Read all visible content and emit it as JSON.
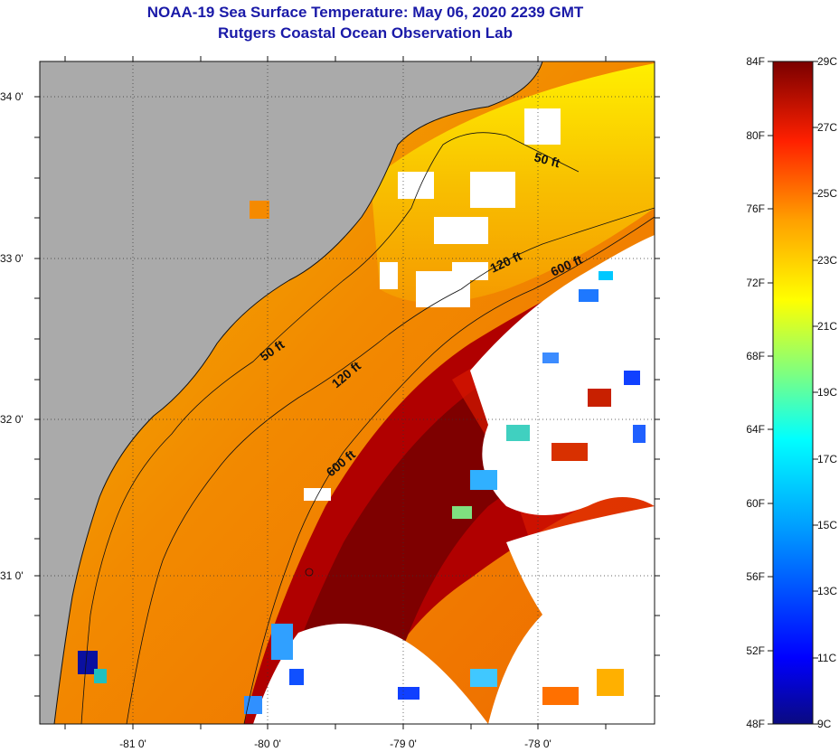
{
  "title": "NOAA-19 Sea Surface Temperature:  May 06, 2020 2239 GMT",
  "subtitle": "Rutgers Coastal Ocean Observation Lab",
  "map": {
    "longitude_ticks": [
      "-81 0'",
      "-80 0'",
      "-79 0'",
      "-78 0'"
    ],
    "latitude_ticks": [
      "34 0'",
      "33 0'",
      "32 0'",
      "31 0'"
    ],
    "longitude_range": [
      -81.65,
      -77.15
    ],
    "latitude_range": [
      30.1,
      34.2
    ],
    "land_color": "#aaaaaa",
    "cloud_color": "#ffffff",
    "contour_labels": [
      "50 ft",
      "120 ft",
      "600 ft",
      "50 ft",
      "120 ft",
      "600 ft"
    ]
  },
  "colorbar": {
    "fahrenheit_labels": [
      "84F",
      "80F",
      "76F",
      "72F",
      "68F",
      "64F",
      "60F",
      "56F",
      "52F",
      "48F"
    ],
    "celsius_labels": [
      "29C",
      "27C",
      "25C",
      "23C",
      "21C",
      "19C",
      "17C",
      "15C",
      "13C",
      "11C",
      "9C"
    ],
    "colors": [
      "#0a0a8c",
      "#0000ff",
      "#00a0ff",
      "#00ffff",
      "#7fff7f",
      "#ffff00",
      "#ffa000",
      "#ff3000",
      "#c00000",
      "#7a0000"
    ]
  }
}
